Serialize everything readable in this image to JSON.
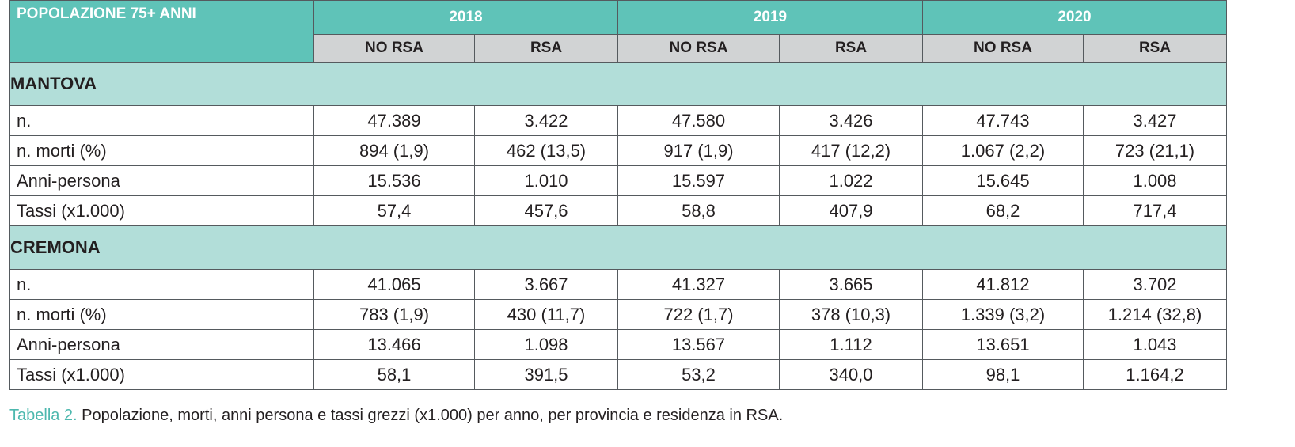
{
  "table": {
    "corner_label": "POPOLAZIONE 75+ ANNI",
    "years": [
      "2018",
      "2019",
      "2020"
    ],
    "subheaders": [
      "NO RSA",
      "RSA",
      "NO RSA",
      "RSA",
      "NO RSA",
      "RSA"
    ],
    "sections": [
      {
        "name": "MANTOVA",
        "rows": [
          {
            "label": "n.",
            "values": [
              "47.389",
              "3.422",
              "47.580",
              "3.426",
              "47.743",
              "3.427"
            ]
          },
          {
            "label": "n. morti (%)",
            "values": [
              "894 (1,9)",
              "462 (13,5)",
              "917 (1,9)",
              "417 (12,2)",
              "1.067 (2,2)",
              "723 (21,1)"
            ]
          },
          {
            "label": "Anni-persona",
            "values": [
              "15.536",
              "1.010",
              "15.597",
              "1.022",
              "15.645",
              "1.008"
            ]
          },
          {
            "label": "Tassi (x1.000)",
            "values": [
              "57,4",
              "457,6",
              "58,8",
              "407,9",
              "68,2",
              "717,4"
            ]
          }
        ]
      },
      {
        "name": "CREMONA",
        "rows": [
          {
            "label": "n.",
            "values": [
              "41.065",
              "3.667",
              "41.327",
              "3.665",
              "41.812",
              "3.702"
            ]
          },
          {
            "label": "n. morti (%)",
            "values": [
              "783 (1,9)",
              "430 (11,7)",
              "722 (1,7)",
              "378 (10,3)",
              "1.339 (3,2)",
              "1.214 (32,8)"
            ]
          },
          {
            "label": "Anni-persona",
            "values": [
              "13.466",
              "1.098",
              "13.567",
              "1.112",
              "13.651",
              "1.043"
            ]
          },
          {
            "label": "Tassi (x1.000)",
            "values": [
              "58,1",
              "391,5",
              "53,2",
              "340,0",
              "98,1",
              "1.164,2"
            ]
          }
        ]
      }
    ]
  },
  "caption": {
    "title": "Tabella 2.",
    "text": " Popolazione, morti, anni persona e tassi grezzi (x1.000) per anno, per provincia e residenza in RSA."
  },
  "colors": {
    "header_teal": "#5fc3b8",
    "subheader_gray": "#d1d3d4",
    "section_teal": "#b2ded9",
    "caption_teal": "#4db8ae"
  }
}
